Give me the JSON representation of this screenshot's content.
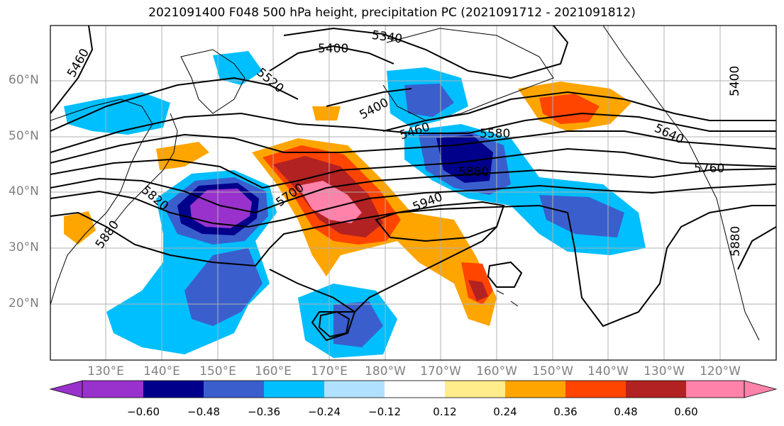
{
  "title": "2021091400 F048 500 hPa height, precipitation PC (2021091712 - 2021091812)",
  "lat_labels": [
    "60°N",
    "50°N",
    "40°N",
    "30°N",
    "20°N"
  ],
  "lon_labels": [
    "130°E",
    "140°E",
    "150°E",
    "160°E",
    "170°E",
    "180°W",
    "170°W",
    "160°W",
    "150°W",
    "140°W",
    "130°W",
    "120°W"
  ],
  "contour_labels": [
    "5460",
    "5340",
    "5400",
    "5520",
    "5400",
    "5460",
    "5580",
    "5640",
    "5400",
    "5700",
    "5880",
    "5760",
    "5940",
    "5820",
    "5880",
    "5880"
  ],
  "colorbar": {
    "ticks": [
      "−0.60",
      "−0.48",
      "−0.36",
      "−0.24",
      "−0.12",
      "0.12",
      "0.24",
      "0.36",
      "0.48",
      "0.60"
    ],
    "colors": [
      "#9932cc",
      "#00008b",
      "#3a5fcd",
      "#00bfff",
      "#b0e2ff",
      "#ffffff",
      "#ffec8b",
      "#ffa500",
      "#ff4500",
      "#b22222",
      "#ff82ab"
    ]
  },
  "colors": {
    "purple": "#9932cc",
    "navy": "#00008b",
    "blue": "#3a5fcd",
    "cyan": "#00bfff",
    "lightblue": "#b0e2ff",
    "yellow": "#ffec8b",
    "orange": "#ffa500",
    "redorange": "#ff4500",
    "darkred": "#b22222",
    "pink": "#ff82ab"
  }
}
